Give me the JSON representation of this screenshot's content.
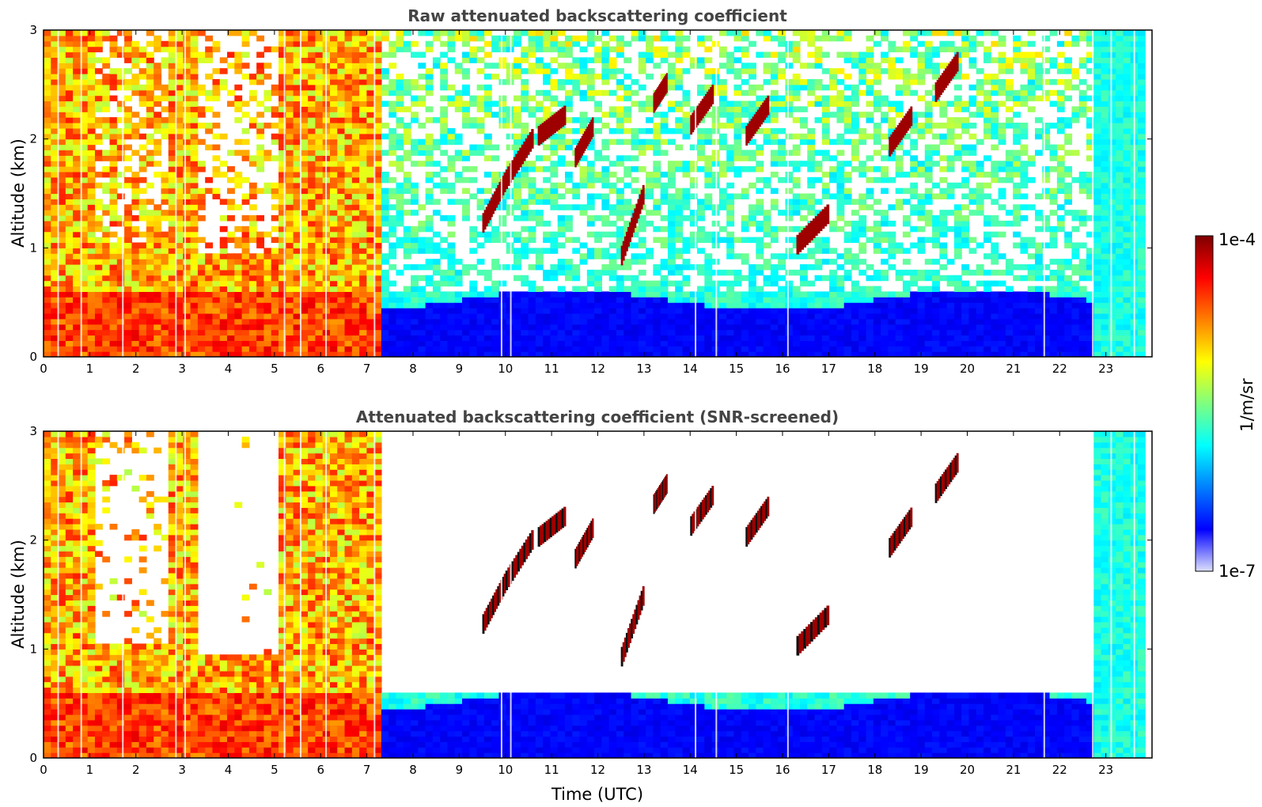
{
  "colors": {
    "jet": [
      "#00007f",
      "#0000ff",
      "#007fff",
      "#00ffff",
      "#7fff7f",
      "#ffff00",
      "#ff7f00",
      "#ff0000",
      "#7f0000"
    ],
    "low_end": "#dde0fb",
    "title_text": "#444444",
    "axis": "#000000"
  },
  "chart_data": [
    {
      "type": "heatmap",
      "title": "Raw attenuated backscattering coefficient",
      "xlabel": "",
      "ylabel": "Altitude (km)",
      "xlim": [
        0,
        24
      ],
      "ylim": [
        0,
        3
      ],
      "xticks": [
        0,
        1,
        2,
        3,
        4,
        5,
        6,
        7,
        8,
        9,
        10,
        11,
        12,
        13,
        14,
        15,
        16,
        17,
        18,
        19,
        20,
        21,
        22,
        23
      ],
      "yticks": [
        0,
        1,
        2,
        3
      ],
      "data_extent_hours": [
        0,
        23.85
      ],
      "screened": false,
      "features": {
        "clouds_km": [
          {
            "t": [
              9.5,
              10.0
            ],
            "z": [
              1.2,
              1.6
            ]
          },
          {
            "t": [
              10.0,
              10.6
            ],
            "z": [
              1.6,
              2.0
            ]
          },
          {
            "t": [
              10.7,
              11.3
            ],
            "z": [
              2.0,
              2.2
            ]
          },
          {
            "t": [
              11.5,
              11.9
            ],
            "z": [
              1.8,
              2.1
            ]
          },
          {
            "t": [
              12.5,
              13.0
            ],
            "z": [
              0.9,
              1.5
            ]
          },
          {
            "t": [
              13.2,
              13.5
            ],
            "z": [
              2.3,
              2.5
            ]
          },
          {
            "t": [
              14.0,
              14.5
            ],
            "z": [
              2.1,
              2.4
            ]
          },
          {
            "t": [
              15.2,
              15.7
            ],
            "z": [
              2.0,
              2.3
            ]
          },
          {
            "t": [
              16.3,
              17.0
            ],
            "z": [
              1.0,
              1.3
            ]
          },
          {
            "t": [
              18.3,
              18.8
            ],
            "z": [
              1.9,
              2.2
            ]
          },
          {
            "t": [
              19.3,
              19.8
            ],
            "z": [
              2.4,
              2.7
            ]
          }
        ],
        "boundary_layer_top_km": [
          0.45,
          0.6
        ]
      }
    },
    {
      "type": "heatmap",
      "title": "Attenuated backscattering coefficient (SNR-screened)",
      "xlabel": "Time (UTC)",
      "ylabel": "Altitude (km)",
      "xlim": [
        0,
        24
      ],
      "ylim": [
        0,
        3
      ],
      "xticks": [
        0,
        1,
        2,
        3,
        4,
        5,
        6,
        7,
        8,
        9,
        10,
        11,
        12,
        13,
        14,
        15,
        16,
        17,
        18,
        19,
        20,
        21,
        22,
        23
      ],
      "yticks": [
        0,
        1,
        2,
        3
      ],
      "data_extent_hours": [
        0,
        23.85
      ],
      "screened": true,
      "features": {
        "clouds_km": [
          {
            "t": [
              9.5,
              10.0
            ],
            "z": [
              1.2,
              1.6
            ]
          },
          {
            "t": [
              10.0,
              10.6
            ],
            "z": [
              1.6,
              2.0
            ]
          },
          {
            "t": [
              10.7,
              11.3
            ],
            "z": [
              2.0,
              2.2
            ]
          },
          {
            "t": [
              11.5,
              11.9
            ],
            "z": [
              1.8,
              2.1
            ]
          },
          {
            "t": [
              12.5,
              13.0
            ],
            "z": [
              0.9,
              1.5
            ]
          },
          {
            "t": [
              13.2,
              13.5
            ],
            "z": [
              2.3,
              2.5
            ]
          },
          {
            "t": [
              14.0,
              14.5
            ],
            "z": [
              2.1,
              2.4
            ]
          },
          {
            "t": [
              15.2,
              15.7
            ],
            "z": [
              2.0,
              2.3
            ]
          },
          {
            "t": [
              16.3,
              17.0
            ],
            "z": [
              1.0,
              1.3
            ]
          },
          {
            "t": [
              18.3,
              18.8
            ],
            "z": [
              1.9,
              2.2
            ]
          },
          {
            "t": [
              19.3,
              19.8
            ],
            "z": [
              2.4,
              2.7
            ]
          }
        ],
        "boundary_layer_top_km": [
          0.45,
          0.6
        ]
      }
    }
  ],
  "colorbar": {
    "label": "1/m/sr",
    "max_label": "1e-4",
    "min_label": "1e-7",
    "scale": "log",
    "range": [
      1e-07,
      0.0001
    ]
  }
}
